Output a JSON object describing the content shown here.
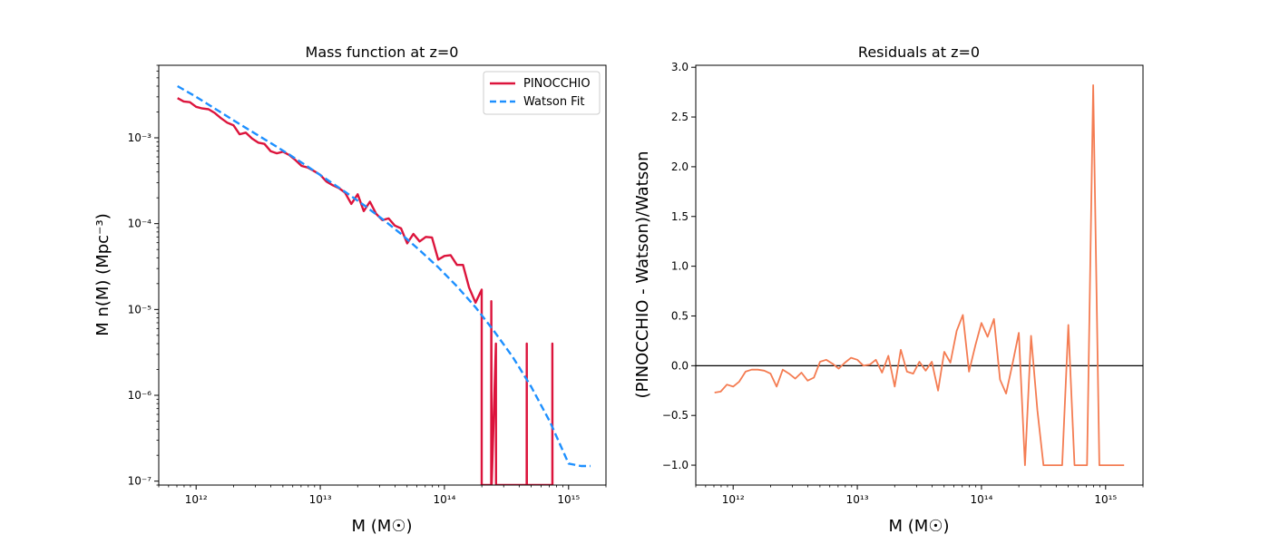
{
  "chart_data": [
    {
      "type": "line",
      "title": "Mass function at z=0",
      "xlabel": "M (M☉)",
      "ylabel": "M n(M) (Mpc⁻³)",
      "xscale": "log",
      "yscale": "log",
      "xlim": [
        500000000000.0,
        2000000000000000.0
      ],
      "ylim": [
        9e-08,
        0.007
      ],
      "xticks": [
        {
          "value": 1000000000000.0,
          "label": "10¹²"
        },
        {
          "value": 10000000000000.0,
          "label": "10¹³"
        },
        {
          "value": 100000000000000.0,
          "label": "10¹⁴"
        },
        {
          "value": 1000000000000000.0,
          "label": "10¹⁵"
        }
      ],
      "yticks": [
        {
          "value": 1e-07,
          "label": "10⁻⁷"
        },
        {
          "value": 1e-06,
          "label": "10⁻⁶"
        },
        {
          "value": 1e-05,
          "label": "10⁻⁵"
        },
        {
          "value": 0.0001,
          "label": "10⁻⁴"
        },
        {
          "value": 0.001,
          "label": "10⁻³"
        }
      ],
      "grid": false,
      "legend": "top-right",
      "series": [
        {
          "name": "PINOCCHIO",
          "color": "#dc143c",
          "dash": "solid",
          "x": [
            708000000000.0,
            794000000000.0,
            891000000000.0,
            1000000000000.0,
            1120000000000.0,
            1260000000000.0,
            1410000000000.0,
            1580000000000.0,
            1780000000000.0,
            2000000000000.0,
            2240000000000.0,
            2510000000000.0,
            2820000000000.0,
            3160000000000.0,
            3550000000000.0,
            3980000000000.0,
            4470000000000.0,
            5010000000000.0,
            5620000000000.0,
            6310000000000.0,
            7080000000000.0,
            7940000000000.0,
            8910000000000.0,
            10000000000000.0,
            11200000000000.0,
            12600000000000.0,
            14100000000000.0,
            15800000000000.0,
            17800000000000.0,
            20000000000000.0,
            22400000000000.0,
            25100000000000.0,
            28200000000000.0,
            31600000000000.0,
            35500000000000.0,
            39800000000000.0,
            44700000000000.0,
            50100000000000.0,
            56200000000000.0,
            63100000000000.0,
            70800000000000.0,
            79400000000000.0,
            89100000000000.0,
            100000000000000.0,
            112000000000000.0,
            126000000000000.0,
            141000000000000.0,
            158000000000000.0,
            178000000000000.0,
            199500000000000.0,
            199700000000000.0,
            238000000000000.0,
            238500000000000.0,
            240000000000000.0,
            260000000000000.0,
            260500000000000.0,
            460000000000000.0,
            460500000000000.0,
            461000000000000.0,
            740000000000000.0,
            740500000000000.0,
            741000000000000.0
          ],
          "y": [
            0.0029,
            0.00265,
            0.0026,
            0.0023,
            0.0022,
            0.00215,
            0.00195,
            0.0017,
            0.0015,
            0.0014,
            0.0011,
            0.00115,
            0.00098,
            0.00088,
            0.00085,
            0.0007,
            0.00066,
            0.00069,
            0.00063,
            0.00055,
            0.00047,
            0.00045,
            0.00041,
            0.00037,
            0.00031,
            0.00028,
            0.00026,
            0.00023,
            0.00017,
            0.00022,
            0.00014,
            0.00018,
            0.00013,
            0.00011,
            0.000115,
            9.5e-05,
            8.8e-05,
            5.9e-05,
            7.6e-05,
            6.2e-05,
            7e-05,
            6.9e-05,
            3.8e-05,
            4.2e-05,
            4.3e-05,
            3.3e-05,
            3.3e-05,
            1.8e-05,
            1.2e-05,
            1.7e-05,
            9e-08,
            9e-08,
            1.25e-05,
            9e-08,
            4e-06,
            9e-08,
            9e-08,
            4e-06,
            9e-08,
            9e-08,
            4e-06,
            9e-08
          ]
        },
        {
          "name": "Watson Fit",
          "color": "#1e90ff",
          "dash": "dashed",
          "x": [
            708000000000.0,
            1000000000000.0,
            1410000000000.0,
            2000000000000.0,
            2820000000000.0,
            3980000000000.0,
            5620000000000.0,
            7940000000000.0,
            11200000000000.0,
            15800000000000.0,
            22400000000000.0,
            31600000000000.0,
            44700000000000.0,
            63100000000000.0,
            89100000000000.0,
            126000000000000.0,
            178000000000000.0,
            251000000000000.0,
            355000000000000.0,
            501000000000000.0,
            708000000000000.0,
            1000000000000000.0,
            1260000000000000.0,
            1500000000000000.0
          ],
          "y": [
            0.004,
            0.003,
            0.0022,
            0.0016,
            0.00118,
            0.00087,
            0.00064,
            0.00046,
            0.00033,
            0.000235,
            0.000165,
            0.000113,
            7.6e-05,
            4.9e-05,
            3.1e-05,
            1.86e-05,
            1.06e-05,
            5.6e-06,
            2.8e-06,
            1.25e-06,
            4.9e-07,
            1.6e-07,
            1.5e-07,
            1.5e-07
          ]
        }
      ]
    },
    {
      "type": "line",
      "title": "Residuals at z=0",
      "xlabel": "M (M☉)",
      "ylabel": "(PINOCCHIO - Watson)/Watson",
      "xscale": "log",
      "yscale": "linear",
      "xlim": [
        500000000000.0,
        2000000000000000.0
      ],
      "ylim": [
        -1.2,
        3.02
      ],
      "xticks": [
        {
          "value": 1000000000000.0,
          "label": "10¹²"
        },
        {
          "value": 10000000000000.0,
          "label": "10¹³"
        },
        {
          "value": 100000000000000.0,
          "label": "10¹⁴"
        },
        {
          "value": 1000000000000000.0,
          "label": "10¹⁵"
        }
      ],
      "yticks": [
        {
          "value": -1.0,
          "label": "−1.0"
        },
        {
          "value": -0.5,
          "label": "−0.5"
        },
        {
          "value": 0.0,
          "label": "0.0"
        },
        {
          "value": 0.5,
          "label": "0.5"
        },
        {
          "value": 1.0,
          "label": "1.0"
        },
        {
          "value": 1.5,
          "label": "1.5"
        },
        {
          "value": 2.0,
          "label": "2.0"
        },
        {
          "value": 2.5,
          "label": "2.5"
        },
        {
          "value": 3.0,
          "label": "3.0"
        }
      ],
      "hline": 0.0,
      "grid": false,
      "series": [
        {
          "color": "#f47c52",
          "dash": "solid",
          "x": [
            708000000000.0,
            794000000000.0,
            891000000000.0,
            1000000000000.0,
            1120000000000.0,
            1260000000000.0,
            1410000000000.0,
            1580000000000.0,
            1780000000000.0,
            2000000000000.0,
            2240000000000.0,
            2510000000000.0,
            2820000000000.0,
            3160000000000.0,
            3550000000000.0,
            3980000000000.0,
            4470000000000.0,
            5010000000000.0,
            5620000000000.0,
            6310000000000.0,
            7080000000000.0,
            7940000000000.0,
            8910000000000.0,
            10000000000000.0,
            11200000000000.0,
            12600000000000.0,
            14100000000000.0,
            15800000000000.0,
            17800000000000.0,
            20000000000000.0,
            22400000000000.0,
            25100000000000.0,
            28200000000000.0,
            31600000000000.0,
            35500000000000.0,
            39800000000000.0,
            44700000000000.0,
            50100000000000.0,
            56200000000000.0,
            63100000000000.0,
            70800000000000.0,
            79400000000000.0,
            89100000000000.0,
            100000000000000.0,
            112000000000000.0,
            126000000000000.0,
            141000000000000.0,
            158000000000000.0,
            178000000000000.0,
            200000000000000.0,
            224000000000000.0,
            251000000000000.0,
            282000000000000.0,
            316000000000000.0,
            355000000000000.0,
            398000000000000.0,
            447000000000000.0,
            501000000000000.0,
            562000000000000.0,
            631000000000000.0,
            708000000000000.0,
            794000000000000.0,
            891000000000000.0,
            1000000000000000.0,
            1120000000000000.0,
            1260000000000000.0,
            1410000000000000.0
          ],
          "y": [
            -0.27,
            -0.26,
            -0.19,
            -0.21,
            -0.16,
            -0.06,
            -0.04,
            -0.04,
            -0.05,
            -0.08,
            -0.21,
            -0.04,
            -0.08,
            -0.13,
            -0.07,
            -0.15,
            -0.12,
            0.04,
            0.06,
            0.02,
            -0.03,
            0.03,
            0.08,
            0.06,
            0.0,
            0.01,
            0.06,
            -0.07,
            0.1,
            -0.21,
            0.16,
            -0.06,
            -0.08,
            0.04,
            -0.05,
            0.04,
            -0.25,
            0.14,
            0.03,
            0.35,
            0.51,
            -0.06,
            0.2,
            0.43,
            0.29,
            0.47,
            -0.14,
            -0.28,
            0.02,
            0.33,
            -1.0,
            0.3,
            -0.45,
            -1.0,
            -1.0,
            -1.0,
            -1.0,
            0.41,
            -1.0,
            -1.0,
            -1.0,
            2.82,
            -1.0,
            -1.0,
            -1.0,
            -1.0,
            -1.0
          ]
        }
      ]
    }
  ],
  "legend": {
    "items": [
      {
        "label": "PINOCCHIO"
      },
      {
        "label": "Watson Fit"
      }
    ]
  }
}
